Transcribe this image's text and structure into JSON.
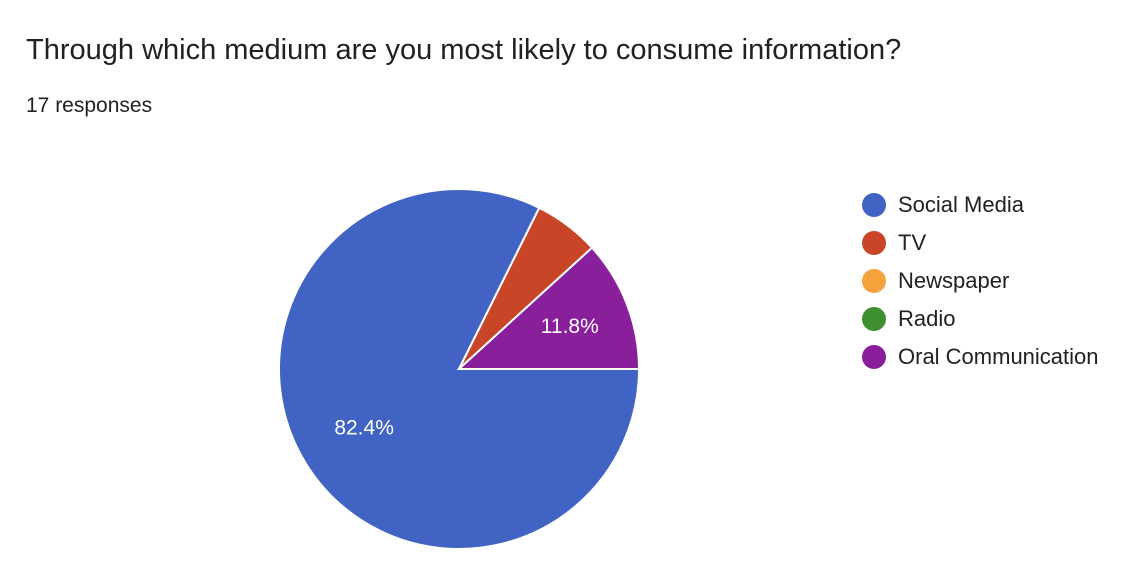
{
  "header": {
    "title": "Through which medium are you most likely to consume information?",
    "responses": "17 responses"
  },
  "chart_data": {
    "type": "pie",
    "title": "Through which medium are you most likely to consume information?",
    "total_responses": 17,
    "slices": [
      {
        "label": "Social Media",
        "count": 14,
        "percent": 82.4,
        "percent_label": "82.4%",
        "color": "#4063c4"
      },
      {
        "label": "TV",
        "count": 1,
        "percent": 5.9,
        "percent_label": "",
        "color": "#c84527"
      },
      {
        "label": "Newspaper",
        "count": 0,
        "percent": 0,
        "percent_label": "",
        "color": "#f4a23b"
      },
      {
        "label": "Radio",
        "count": 0,
        "percent": 0,
        "percent_label": "",
        "color": "#3d8f2f"
      },
      {
        "label": "Oral Communication",
        "count": 2,
        "percent": 11.8,
        "percent_label": "11.8%",
        "color": "#891f9a"
      }
    ],
    "legend_position": "right"
  }
}
